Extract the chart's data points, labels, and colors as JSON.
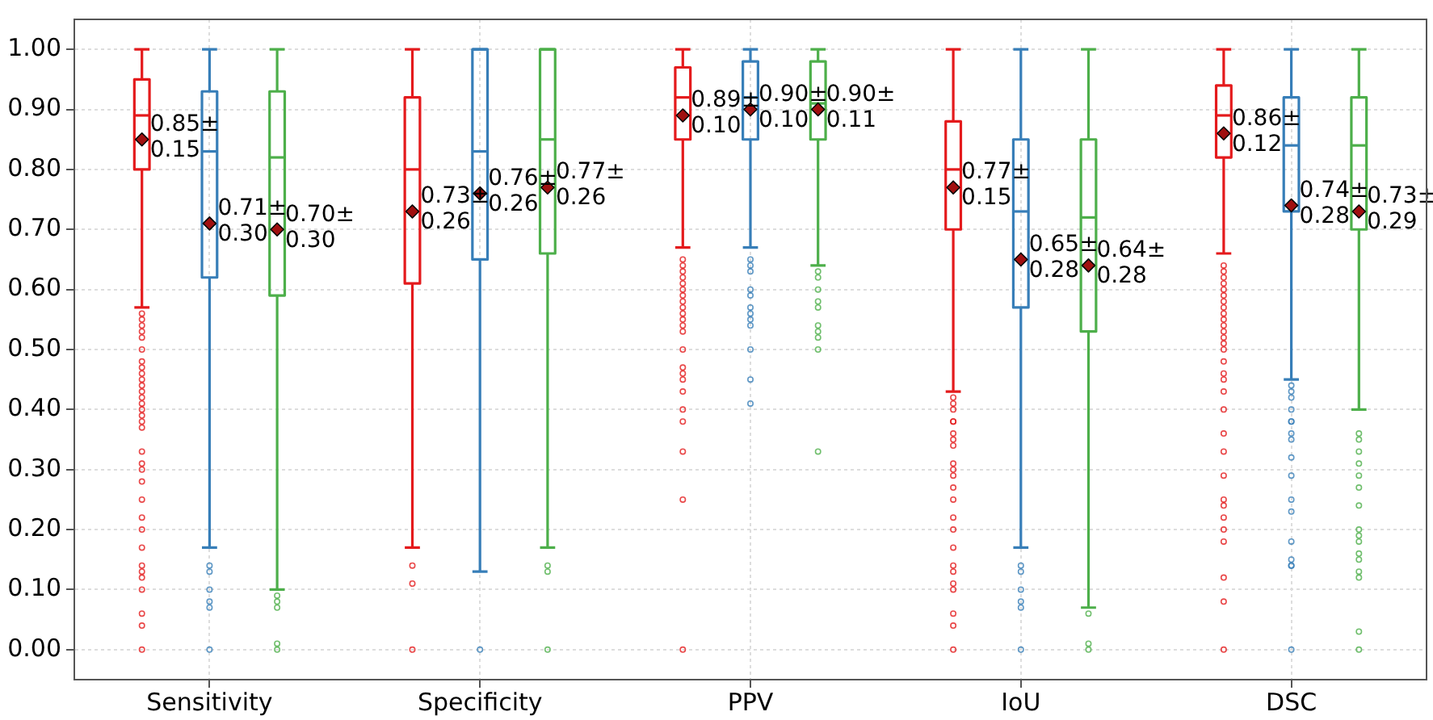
{
  "chart_data": {
    "type": "box",
    "categories": [
      "Sensitivity",
      "Specificity",
      "PPV",
      "IoU",
      "DSC"
    ],
    "ylim": [
      -0.05,
      1.05
    ],
    "yticks": [
      {
        "value": 0,
        "label": "0.00"
      },
      {
        "value": 0.1,
        "label": "0.10"
      },
      {
        "value": 0.2,
        "label": "0.20"
      },
      {
        "value": 0.3,
        "label": "0.30"
      },
      {
        "value": 0.4,
        "label": "0.40"
      },
      {
        "value": 0.5,
        "label": "0.50"
      },
      {
        "value": 0.6,
        "label": "0.60"
      },
      {
        "value": 0.7,
        "label": "0.70"
      },
      {
        "value": 0.8,
        "label": "0.80"
      },
      {
        "value": 0.9,
        "label": "0.90"
      },
      {
        "value": 1,
        "label": "1.00"
      }
    ],
    "grid": true,
    "series": [
      {
        "color": "#e41a1c",
        "value_labels": [
          "0.85±\n0.15",
          "0.73±\n0.26",
          "0.89±\n0.10",
          "0.77±\n0.15",
          "0.86±\n0.12"
        ],
        "boxes": [
          {
            "low": 0.57,
            "q1": 0.8,
            "median": 0.89,
            "q3": 0.95,
            "high": 1.0,
            "mean": 0.85,
            "outliers": [
              0.56,
              0.55,
              0.54,
              0.53,
              0.52,
              0.5,
              0.48,
              0.47,
              0.46,
              0.45,
              0.44,
              0.43,
              0.42,
              0.41,
              0.4,
              0.39,
              0.38,
              0.37,
              0.33,
              0.31,
              0.3,
              0.28,
              0.25,
              0.22,
              0.2,
              0.17,
              0.14,
              0.13,
              0.12,
              0.1,
              0.06,
              0.04,
              0.0
            ]
          },
          {
            "low": 0.17,
            "q1": 0.61,
            "median": 0.8,
            "q3": 0.92,
            "high": 1.0,
            "mean": 0.73,
            "outliers": [
              0.14,
              0.11,
              0.0
            ]
          },
          {
            "low": 0.67,
            "q1": 0.85,
            "median": 0.92,
            "q3": 0.97,
            "high": 1.0,
            "mean": 0.89,
            "outliers": [
              0.65,
              0.64,
              0.63,
              0.62,
              0.61,
              0.6,
              0.59,
              0.58,
              0.57,
              0.56,
              0.55,
              0.54,
              0.53,
              0.5,
              0.47,
              0.46,
              0.45,
              0.43,
              0.4,
              0.38,
              0.33,
              0.25,
              0.0
            ]
          },
          {
            "low": 0.43,
            "q1": 0.7,
            "median": 0.8,
            "q3": 0.88,
            "high": 1.0,
            "mean": 0.77,
            "outliers": [
              0.42,
              0.41,
              0.4,
              0.38,
              0.38,
              0.36,
              0.35,
              0.34,
              0.31,
              0.3,
              0.29,
              0.27,
              0.25,
              0.22,
              0.2,
              0.17,
              0.14,
              0.13,
              0.11,
              0.1,
              0.06,
              0.04,
              0.0
            ]
          },
          {
            "low": 0.66,
            "q1": 0.82,
            "median": 0.89,
            "q3": 0.94,
            "high": 1.0,
            "mean": 0.86,
            "outliers": [
              0.64,
              0.63,
              0.62,
              0.61,
              0.6,
              0.59,
              0.58,
              0.57,
              0.56,
              0.55,
              0.54,
              0.53,
              0.52,
              0.51,
              0.5,
              0.48,
              0.46,
              0.45,
              0.43,
              0.4,
              0.36,
              0.33,
              0.29,
              0.25,
              0.24,
              0.22,
              0.2,
              0.18,
              0.12,
              0.08,
              0.0
            ]
          }
        ]
      },
      {
        "color": "#377eb8",
        "value_labels": [
          "0.71±\n0.30",
          "0.76±\n0.26",
          "0.90±\n0.10",
          "0.65±\n0.28",
          "0.74±\n0.28"
        ],
        "boxes": [
          {
            "low": 0.17,
            "q1": 0.62,
            "median": 0.83,
            "q3": 0.93,
            "high": 1.0,
            "mean": 0.71,
            "outliers": [
              0.14,
              0.13,
              0.1,
              0.08,
              0.07,
              0.0
            ]
          },
          {
            "low": 0.13,
            "q1": 0.65,
            "median": 0.83,
            "q3": 1.0,
            "high": 1.0,
            "mean": 0.76,
            "outliers": [
              0.0
            ]
          },
          {
            "low": 0.67,
            "q1": 0.85,
            "median": 0.92,
            "q3": 0.98,
            "high": 1.0,
            "mean": 0.9,
            "outliers": [
              0.65,
              0.64,
              0.63,
              0.6,
              0.59,
              0.57,
              0.56,
              0.55,
              0.54,
              0.5,
              0.45,
              0.41
            ]
          },
          {
            "low": 0.17,
            "q1": 0.57,
            "median": 0.73,
            "q3": 0.85,
            "high": 1.0,
            "mean": 0.65,
            "outliers": [
              0.14,
              0.13,
              0.1,
              0.08,
              0.07,
              0.0
            ]
          },
          {
            "low": 0.45,
            "q1": 0.73,
            "median": 0.84,
            "q3": 0.92,
            "high": 1.0,
            "mean": 0.74,
            "outliers": [
              0.44,
              0.43,
              0.42,
              0.4,
              0.38,
              0.38,
              0.36,
              0.35,
              0.32,
              0.29,
              0.25,
              0.23,
              0.18,
              0.15,
              0.14,
              0.14,
              0.0
            ]
          }
        ]
      },
      {
        "color": "#4daf4a",
        "value_labels": [
          "0.70±\n0.30",
          "0.77±\n0.26",
          "0.90±\n0.11",
          "0.64±\n0.28",
          "0.73±\n0.29"
        ],
        "boxes": [
          {
            "low": 0.1,
            "q1": 0.59,
            "median": 0.82,
            "q3": 0.93,
            "high": 1.0,
            "mean": 0.7,
            "outliers": [
              0.09,
              0.08,
              0.07,
              0.01,
              0.0
            ]
          },
          {
            "low": 0.17,
            "q1": 0.66,
            "median": 0.85,
            "q3": 1.0,
            "high": 1.0,
            "mean": 0.77,
            "outliers": [
              0.14,
              0.13,
              0.0
            ]
          },
          {
            "low": 0.64,
            "q1": 0.85,
            "median": 0.91,
            "q3": 0.98,
            "high": 1.0,
            "mean": 0.9,
            "outliers": [
              0.63,
              0.62,
              0.6,
              0.58,
              0.57,
              0.54,
              0.53,
              0.52,
              0.5,
              0.33
            ]
          },
          {
            "low": 0.07,
            "q1": 0.53,
            "median": 0.72,
            "q3": 0.85,
            "high": 1.0,
            "mean": 0.64,
            "outliers": [
              0.06,
              0.01,
              0.0
            ]
          },
          {
            "low": 0.4,
            "q1": 0.7,
            "median": 0.84,
            "q3": 0.92,
            "high": 1.0,
            "mean": 0.73,
            "outliers": [
              0.36,
              0.35,
              0.33,
              0.31,
              0.29,
              0.27,
              0.24,
              0.2,
              0.19,
              0.18,
              0.16,
              0.15,
              0.13,
              0.12,
              0.03,
              0.0
            ]
          }
        ]
      }
    ]
  }
}
